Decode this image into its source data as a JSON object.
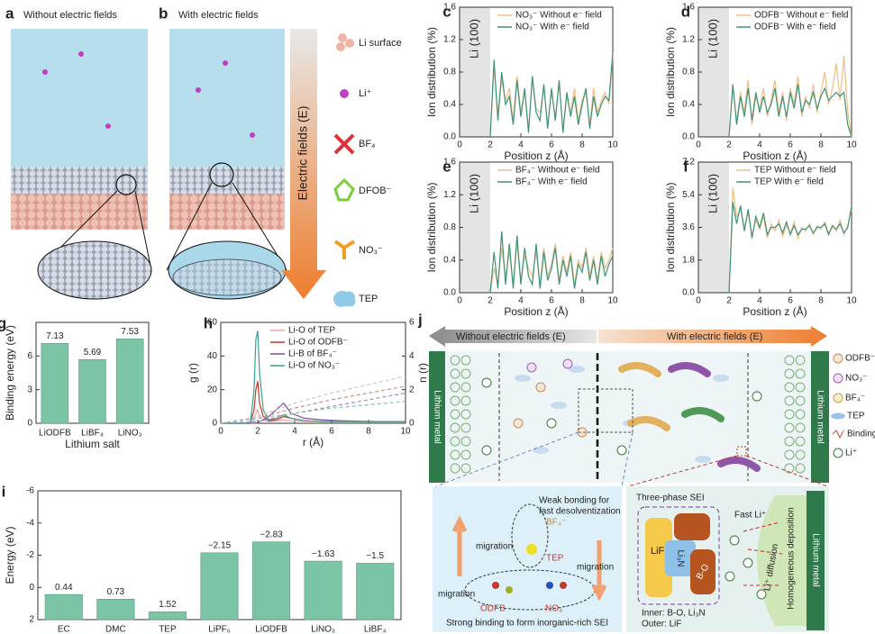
{
  "figure_ab": {
    "labels": [
      "a",
      "b"
    ],
    "titles": [
      "Without electric fields",
      "With electric fields"
    ],
    "legend": [
      "Li surface",
      "Li⁺",
      "BF₄",
      "DFOB⁻",
      "NO₃⁻",
      "TEP"
    ],
    "arrow_label": "Electric fields (E)"
  },
  "figure_j": {
    "label": "j",
    "arrows": [
      "Without electric fields (E)",
      "With electric fields (E)"
    ],
    "electrodes": [
      "Lithium metal",
      "Lithium metal"
    ],
    "legend": [
      "ODFB⁻",
      "NO₃⁻",
      "BF₄⁻",
      "TEP",
      "Binding",
      "Li⁺"
    ],
    "inset_left": {
      "note": [
        "Weak bonding for",
        "fast desolventization"
      ],
      "migration": [
        "migration",
        "migration",
        "migration"
      ],
      "species": [
        "BF₄⁻",
        "TEP",
        "ODFB",
        "NO₃⁻"
      ],
      "caption": "Strong binding to form inorganic-rich SEI"
    },
    "inset_right": {
      "title": "Three-phase SEI",
      "phases": [
        "LiF",
        "Li₃N",
        "B-O"
      ],
      "composition": [
        "Inner: B-O, Li₃N",
        "Outer: LiF"
      ],
      "arrows": [
        "Fast Li⁺",
        "Li⁺ diffusion"
      ],
      "deposition": "Homogeneous deposition",
      "electrode": "Lithium metal"
    }
  },
  "chart_data": [
    {
      "panel": "c",
      "type": "line",
      "x": [
        2,
        2.25,
        2.5,
        2.75,
        3,
        3.25,
        3.5,
        3.75,
        4,
        4.25,
        4.5,
        4.75,
        5,
        5.25,
        5.5,
        5.75,
        6,
        6.25,
        6.5,
        6.75,
        7,
        7.25,
        7.5,
        7.75,
        8,
        8.25,
        8.5,
        8.75,
        9,
        9.25,
        9.5,
        9.75,
        10
      ],
      "series": [
        {
          "name": "NO₃⁻ Without e⁻ field",
          "color": "#eebf86",
          "values": [
            0,
            0.85,
            0.3,
            0.7,
            0.45,
            0.6,
            0.2,
            0.75,
            0.3,
            0.55,
            0.1,
            0.7,
            0.35,
            0.3,
            0.6,
            0.15,
            0.55,
            0.25,
            0.65,
            0.1,
            0.5,
            0.3,
            0.6,
            0.2,
            0.45,
            0.55,
            0.15,
            0.6,
            0.3,
            0.45,
            0.55,
            0.4,
            1.0
          ]
        },
        {
          "name": "NO₃⁻ With e⁻ field",
          "color": "#3d9278",
          "values": [
            0,
            0.95,
            0.2,
            0.8,
            0.4,
            0.5,
            0.15,
            0.7,
            0.25,
            0.6,
            0.05,
            0.75,
            0.3,
            0.2,
            0.65,
            0.1,
            0.6,
            0.2,
            0.7,
            0.05,
            0.55,
            0.25,
            0.5,
            0.15,
            0.4,
            0.6,
            0.1,
            0.5,
            0.25,
            0.4,
            0.5,
            0.45,
            1.05
          ]
        }
      ],
      "xlabel": "Position z (Å)",
      "ylabel": "Ion distribution (%)",
      "xlim": [
        0,
        10
      ],
      "ylim": [
        0,
        1.6
      ],
      "xticks": [
        0,
        2,
        4,
        6,
        8,
        10
      ],
      "yticks": [
        {
          "value": 0,
          "label": "0.0"
        },
        0.4,
        0.8,
        1.2,
        1.6
      ],
      "shaded_region": {
        "xlim": [
          0,
          2
        ],
        "label": "Li (100)"
      },
      "legend": "upper right"
    },
    {
      "panel": "d",
      "type": "line",
      "x": [
        2,
        2.25,
        2.5,
        2.75,
        3,
        3.25,
        3.5,
        3.75,
        4,
        4.25,
        4.5,
        4.75,
        5,
        5.25,
        5.5,
        5.75,
        6,
        6.25,
        6.5,
        6.75,
        7,
        7.25,
        7.5,
        7.75,
        8,
        8.25,
        8.5,
        8.75,
        9,
        9.25,
        9.5,
        9.75,
        10
      ],
      "series": [
        {
          "name": "ODFB⁻ Without e⁻ field",
          "color": "#eebf86",
          "values": [
            0,
            0.6,
            0.2,
            0.55,
            0.3,
            0.7,
            0.15,
            0.5,
            0.35,
            0.6,
            0.25,
            0.45,
            0.7,
            0.3,
            0.55,
            0.2,
            0.6,
            0.4,
            0.75,
            0.25,
            0.5,
            0.35,
            0.65,
            0.3,
            0.55,
            0.8,
            0.4,
            0.6,
            0.9,
            0.45,
            1.0,
            0.3,
            0.0
          ]
        },
        {
          "name": "ODFB⁻ With e⁻ field",
          "color": "#3d9278",
          "values": [
            0,
            0.65,
            0.15,
            0.5,
            0.25,
            0.6,
            0.2,
            0.55,
            0.3,
            0.5,
            0.3,
            0.4,
            0.6,
            0.25,
            0.5,
            0.25,
            0.55,
            0.35,
            0.65,
            0.3,
            0.45,
            0.4,
            0.55,
            0.35,
            0.5,
            0.6,
            0.45,
            0.5,
            0.55,
            0.5,
            0.55,
            0.15,
            0.0
          ]
        }
      ],
      "xlabel": "Position z (Å)",
      "ylabel": "Ion distribution (%)",
      "xlim": [
        0,
        10
      ],
      "ylim": [
        0,
        1.6
      ],
      "xticks": [
        0,
        2,
        4,
        6,
        8,
        10
      ],
      "yticks": [
        {
          "value": 0,
          "label": "0.0"
        },
        0.4,
        0.8,
        1.2,
        1.6
      ],
      "shaded_region": {
        "xlim": [
          0,
          2
        ],
        "label": "Li (100)"
      },
      "legend": "upper right"
    },
    {
      "panel": "e",
      "type": "line",
      "x": [
        2,
        2.25,
        2.5,
        2.75,
        3,
        3.25,
        3.5,
        3.75,
        4,
        4.25,
        4.5,
        4.75,
        5,
        5.25,
        5.5,
        5.75,
        6,
        6.25,
        6.5,
        6.75,
        7,
        7.25,
        7.5,
        7.75,
        8,
        8.25,
        8.5,
        8.75,
        9,
        9.25,
        9.5,
        9.75,
        10
      ],
      "series": [
        {
          "name": "BF₄⁻ Without e⁻ field",
          "color": "#eebf86",
          "values": [
            0,
            0.3,
            0.1,
            0.55,
            0.2,
            0.5,
            0.1,
            0.6,
            0.15,
            0.45,
            0.3,
            0.2,
            0.5,
            0.1,
            0.55,
            0.2,
            0.35,
            0.6,
            0.15,
            0.45,
            0.25,
            0.5,
            0.1,
            0.4,
            0.3,
            0.55,
            0.2,
            0.45,
            0.15,
            0.5,
            0.3,
            0.4,
            0.55
          ]
        },
        {
          "name": "BF₄⁻ With e⁻ field",
          "color": "#3d9278",
          "values": [
            0,
            0.5,
            0.05,
            0.75,
            0.1,
            0.6,
            0.05,
            0.7,
            0.1,
            0.55,
            0.2,
            0.1,
            0.6,
            0.05,
            0.5,
            0.15,
            0.3,
            0.55,
            0.1,
            0.4,
            0.2,
            0.45,
            0.05,
            0.35,
            0.25,
            0.5,
            0.15,
            0.4,
            0.1,
            0.45,
            0.2,
            0.35,
            0.45
          ]
        }
      ],
      "xlabel": "Position z (Å)",
      "ylabel": "Ion distribution (%)",
      "xlim": [
        0,
        10
      ],
      "ylim": [
        0,
        1.6
      ],
      "xticks": [
        0,
        2,
        4,
        6,
        8,
        10
      ],
      "yticks": [
        {
          "value": 0,
          "label": "0.0"
        },
        0.4,
        0.8,
        1.2,
        1.6
      ],
      "shaded_region": {
        "xlim": [
          0,
          2
        ],
        "label": "Li (100)"
      },
      "legend": "upper right"
    },
    {
      "panel": "f",
      "type": "line",
      "x": [
        2,
        2.25,
        2.5,
        2.75,
        3,
        3.25,
        3.5,
        3.75,
        4,
        4.25,
        4.5,
        4.75,
        5,
        5.25,
        5.5,
        5.75,
        6,
        6.25,
        6.5,
        6.75,
        7,
        7.25,
        7.5,
        7.75,
        8,
        8.25,
        8.5,
        8.75,
        9,
        9.25,
        9.5,
        9.75,
        10
      ],
      "series": [
        {
          "name": "TEP Without e⁻ field",
          "color": "#eebf86",
          "values": [
            0,
            5.8,
            4.2,
            4.6,
            3.6,
            4.4,
            3.2,
            4.0,
            3.5,
            4.2,
            3.0,
            3.8,
            3.4,
            4.0,
            3.1,
            3.7,
            3.3,
            3.9,
            3.0,
            3.6,
            3.4,
            3.8,
            3.2,
            3.7,
            3.5,
            3.9,
            3.3,
            3.6,
            3.4,
            4.0,
            3.2,
            3.7,
            4.6
          ]
        },
        {
          "name": "TEP With e⁻ field",
          "color": "#3d9278",
          "values": [
            0,
            5.0,
            3.8,
            4.8,
            3.4,
            4.6,
            3.0,
            4.2,
            3.6,
            4.4,
            3.2,
            3.6,
            3.6,
            3.8,
            3.3,
            3.9,
            3.2,
            3.7,
            3.2,
            3.5,
            3.5,
            3.7,
            3.3,
            3.6,
            3.6,
            3.8,
            3.2,
            3.7,
            3.5,
            3.8,
            3.3,
            3.6,
            4.8
          ]
        }
      ],
      "xlabel": "Position z (Å)",
      "ylabel": "Ion distribution (%)",
      "xlim": [
        0,
        10
      ],
      "ylim": [
        0,
        7.2
      ],
      "xticks": [
        0,
        2,
        4,
        6,
        8,
        10
      ],
      "yticks": [
        {
          "value": 0,
          "label": "0.0"
        },
        1.8,
        3.6,
        5.4,
        7.2
      ],
      "shaded_region": {
        "xlim": [
          0,
          2
        ],
        "label": "Li (100)"
      },
      "legend": "upper right"
    },
    {
      "panel": "g",
      "type": "bar",
      "categories": [
        "LiODFB",
        "LiBF₄",
        "LiNO₃"
      ],
      "values": [
        7.13,
        5.69,
        7.53
      ],
      "color": "#7cc4a6",
      "xlabel": "Lithium salt",
      "ylabel": "Binding energy (eV)",
      "ylim": [
        0,
        9
      ],
      "yticks": [
        0,
        3,
        6
      ]
    },
    {
      "panel": "h",
      "type": "line",
      "x": [
        0,
        1,
        1.6,
        1.8,
        1.9,
        2.0,
        2.1,
        2.3,
        2.6,
        3.0,
        3.4,
        3.8,
        4.5,
        5.5,
        6.5,
        7.5,
        8.5,
        10
      ],
      "series": [
        {
          "name": "Li-O of TEP",
          "color": "#f2a3a3",
          "values": [
            0,
            0,
            0,
            2,
            6,
            8,
            4,
            2,
            1,
            1.5,
            2,
            1.5,
            1.2,
            1.1,
            1,
            1,
            1,
            1
          ]
        },
        {
          "name": "Li-O of ODFB⁻",
          "color": "#c0392b",
          "values": [
            0,
            0,
            0,
            8,
            20,
            25,
            12,
            4,
            1.5,
            2,
            4,
            3,
            1.5,
            1,
            1.2,
            1,
            1,
            1
          ]
        },
        {
          "name": "Li-B of BF₄⁻",
          "color": "#7b4fa0",
          "values": [
            0,
            0,
            0,
            0,
            0,
            0.5,
            1,
            2,
            4,
            8,
            12,
            6,
            3,
            2,
            1.5,
            1.2,
            1,
            1
          ]
        },
        {
          "name": "Li-O of NO₃⁻",
          "color": "#3aa08c",
          "values": [
            0,
            0,
            0,
            20,
            50,
            55,
            30,
            8,
            2,
            3,
            5,
            3,
            1.5,
            1,
            1,
            1,
            1,
            1
          ]
        },
        {
          "color": "#c8c8c8",
          "axis": "y2",
          "dash": true,
          "x": [
            0,
            2,
            4,
            6,
            8,
            10
          ],
          "values": [
            0,
            0.4,
            1.2,
            1.8,
            2.3,
            2.8
          ]
        },
        {
          "color": "#c98a8a",
          "axis": "y2",
          "dash": true,
          "x": [
            0,
            2,
            4,
            6,
            8,
            10
          ],
          "values": [
            0,
            0.3,
            0.9,
            1.4,
            1.8,
            2.2
          ]
        },
        {
          "color": "#a58cc0",
          "axis": "y2",
          "dash": true,
          "x": [
            0,
            2,
            4,
            6,
            8,
            10
          ],
          "values": [
            0,
            0.1,
            0.6,
            1.0,
            1.4,
            1.8
          ]
        },
        {
          "color": "#88c4b6",
          "axis": "y2",
          "dash": true,
          "x": [
            0,
            2,
            4,
            6,
            8,
            10
          ],
          "values": [
            0,
            0.3,
            0.6,
            0.9,
            1.1,
            1.3
          ]
        }
      ],
      "xlabel": "r (Å)",
      "ylabel": "g (r)",
      "y2label": "n (r)",
      "xlim": [
        0,
        10
      ],
      "ylim": [
        0,
        60
      ],
      "yticks": [
        0,
        20,
        40,
        60
      ],
      "y2lim": [
        0,
        6
      ],
      "y2ticks": [
        0,
        2,
        4,
        6
      ],
      "xticks": [
        0,
        2,
        4,
        6,
        8,
        10
      ],
      "legend": "upper right"
    },
    {
      "panel": "i",
      "type": "bar",
      "categories": [
        "EC",
        "DMC",
        "TEP",
        "LiPF₆",
        "LiODFB",
        "LiNO₃",
        "LiBF₄"
      ],
      "values": [
        0.44,
        0.73,
        1.52,
        -2.15,
        -2.83,
        -1.63,
        -1.5
      ],
      "value_labels": [
        "0.44",
        "0.73",
        "1.52",
        "−2.15",
        "−2.83",
        "−1.63",
        "−1.5"
      ],
      "color": "#7cc4a6",
      "ylabel": "Energy (eV)",
      "ylim": [
        -6,
        2
      ],
      "yticks": [
        -6,
        -4,
        -2,
        0,
        2
      ],
      "y_inverted": true
    }
  ]
}
